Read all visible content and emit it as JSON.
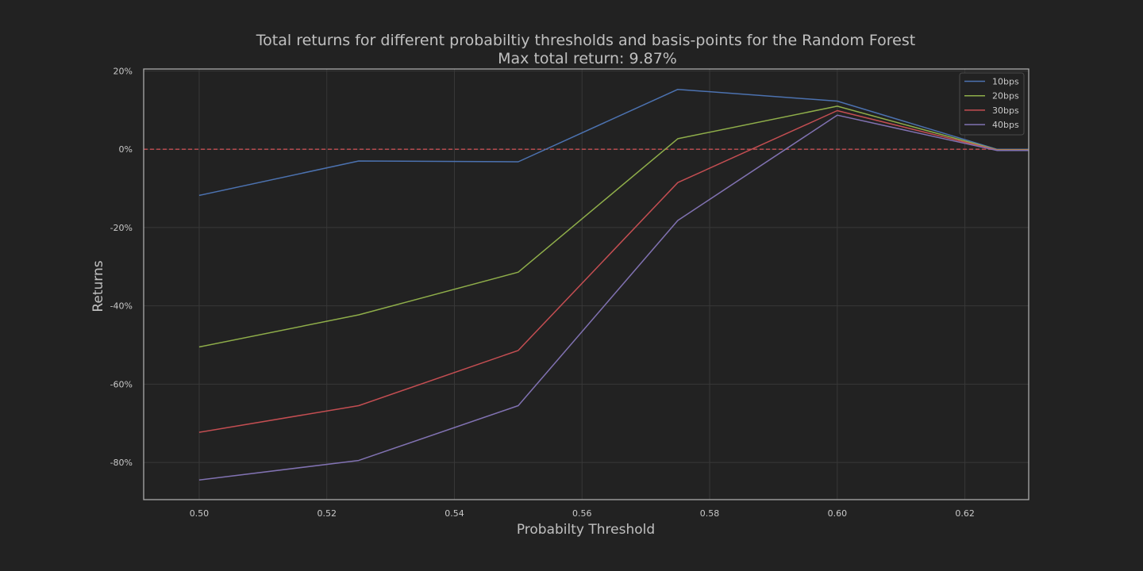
{
  "chart_data": {
    "type": "line",
    "title": "Total returns for different probabiltiy thresholds and basis-points for the Random Forest",
    "subtitle": "Max total return: 9.87%",
    "xlabel": "Probabilty Threshold",
    "ylabel": "Returns",
    "xlim": [
      0.4913,
      0.63
    ],
    "ylim": [
      -89.5,
      20.5
    ],
    "x_ticks": [
      0.5,
      0.52,
      0.54,
      0.56,
      0.58,
      0.6,
      0.62
    ],
    "x_tick_labels": [
      "0.50",
      "0.52",
      "0.54",
      "0.56",
      "0.58",
      "0.60",
      "0.62"
    ],
    "y_ticks": [
      20,
      0,
      -20,
      -40,
      -60,
      -80
    ],
    "y_tick_labels": [
      "20%",
      "0%",
      "-20%",
      "-40%",
      "-60%",
      "-80%"
    ],
    "grid": true,
    "legend_position": "top-right",
    "reference_line": {
      "y": 0,
      "style": "dashed",
      "color": "#c44e52"
    },
    "x": [
      0.5,
      0.525,
      0.55,
      0.575,
      0.6,
      0.625,
      0.63
    ],
    "series": [
      {
        "name": "10bps",
        "color": "#4c72b0",
        "values": [
          -11.8,
          -3.0,
          -3.2,
          15.3,
          12.3,
          0.0,
          0.0
        ]
      },
      {
        "name": "20bps",
        "color": "#8fae4a",
        "values": [
          -50.5,
          -42.3,
          -31.4,
          2.7,
          11.0,
          -0.1,
          -0.1
        ]
      },
      {
        "name": "30bps",
        "color": "#c44e52",
        "values": [
          -72.3,
          -65.5,
          -51.4,
          -8.5,
          9.87,
          -0.2,
          -0.2
        ]
      },
      {
        "name": "40bps",
        "color": "#8172b2",
        "values": [
          -84.5,
          -79.5,
          -65.5,
          -18.2,
          8.7,
          -0.3,
          -0.3
        ]
      }
    ]
  }
}
